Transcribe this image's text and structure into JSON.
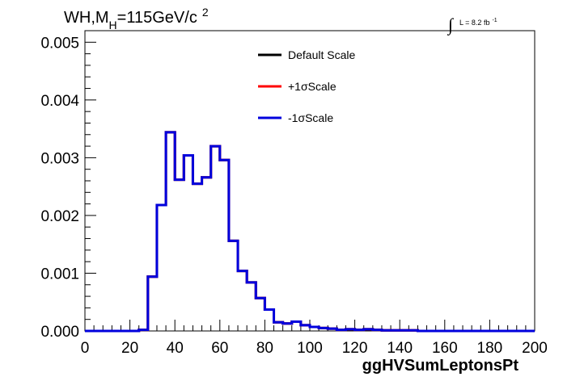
{
  "chart_data": {
    "type": "line",
    "title": {
      "main": "WH,M",
      "sub": "H",
      "rest": "=115GeV/c",
      "sup": "2"
    },
    "lumi": {
      "integral": "∫",
      "label": "L = 8.2 fb",
      "sup": "-1"
    },
    "xlabel": "ggHVSumLeptonsPt",
    "ylabel": "",
    "xlim": [
      0,
      200
    ],
    "ylim": [
      0,
      0.0052
    ],
    "x_ticks": [
      "0",
      "20",
      "40",
      "60",
      "80",
      "100",
      "120",
      "140",
      "160",
      "180",
      "200"
    ],
    "y_ticks": [
      "0.000",
      "0.001",
      "0.002",
      "0.003",
      "0.004",
      "0.005"
    ],
    "bin_width": 4,
    "legend_position": "top-center",
    "series": [
      {
        "name": "Default Scale",
        "color": "#000000",
        "values": [
          0,
          0,
          0,
          0,
          0,
          0,
          2e-05,
          0.00094,
          0.00218,
          0.00344,
          0.00262,
          0.00304,
          0.00255,
          0.00266,
          0.0032,
          0.00296,
          0.00156,
          0.00104,
          0.00084,
          0.00057,
          0.00037,
          0.00015,
          0.00013,
          0.00016,
          0.0001,
          7e-05,
          5e-05,
          4e-05,
          2e-05,
          3e-05,
          2e-05,
          3e-05,
          2e-05,
          1e-05,
          1e-05,
          1e-05,
          1e-05,
          0,
          0,
          0,
          0,
          0,
          0,
          0,
          0,
          0,
          0,
          0,
          0,
          0
        ]
      },
      {
        "name": "+1σScale",
        "color": "#ff0000",
        "values": [
          0,
          0,
          0,
          0,
          0,
          0,
          2e-05,
          0.00094,
          0.00218,
          0.00344,
          0.00262,
          0.00304,
          0.00255,
          0.00266,
          0.0032,
          0.00296,
          0.00156,
          0.00104,
          0.00084,
          0.00057,
          0.00037,
          0.00015,
          0.00013,
          0.00016,
          0.0001,
          7e-05,
          5e-05,
          4e-05,
          2e-05,
          3e-05,
          2e-05,
          3e-05,
          2e-05,
          1e-05,
          1e-05,
          1e-05,
          1e-05,
          0,
          0,
          0,
          0,
          0,
          0,
          0,
          0,
          0,
          0,
          0,
          0,
          0
        ]
      },
      {
        "name": "-1σScale",
        "color": "#0000dd",
        "values": [
          0,
          0,
          0,
          0,
          0,
          0,
          2e-05,
          0.00094,
          0.00218,
          0.00344,
          0.00262,
          0.00304,
          0.00255,
          0.00266,
          0.0032,
          0.00296,
          0.00156,
          0.00104,
          0.00084,
          0.00057,
          0.00037,
          0.00015,
          0.00013,
          0.00016,
          0.0001,
          7e-05,
          5e-05,
          4e-05,
          2e-05,
          3e-05,
          2e-05,
          3e-05,
          2e-05,
          1e-05,
          1e-05,
          1e-05,
          1e-05,
          0,
          0,
          0,
          0,
          0,
          0,
          0,
          0,
          0,
          0,
          0,
          0,
          0
        ]
      }
    ]
  }
}
